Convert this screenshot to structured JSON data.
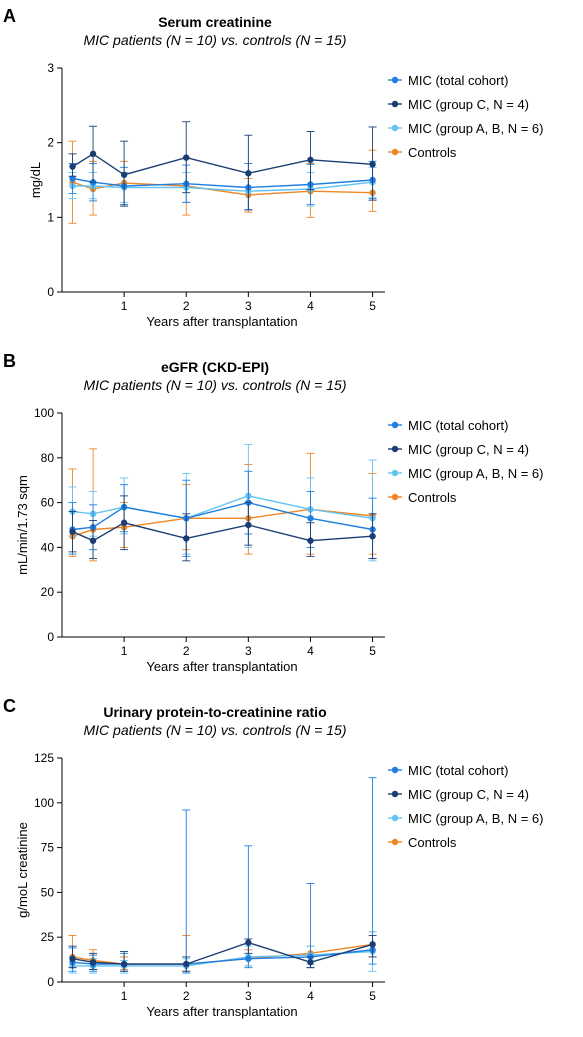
{
  "colors": {
    "total": "#1f7fe0",
    "groupC": "#1a3e73",
    "groupAB": "#63c3f2",
    "controls": "#ef8624"
  },
  "chart_data": [
    {
      "type": "line",
      "panel_letter": "A",
      "title": "Serum creatinine",
      "subtitle": "MIC patients (N = 10) vs. controls (N = 15)",
      "xlabel": "Years after transplantation",
      "ylabel": "mg/dL",
      "xlim": [
        0,
        5.2
      ],
      "ylim": [
        0,
        3
      ],
      "x_ticks": [
        1,
        2,
        3,
        4,
        5
      ],
      "y_ticks": [
        0,
        1,
        2,
        3
      ],
      "legend_position": "right",
      "series": [
        {
          "name": "MIC (total cohort)",
          "color_key": "total",
          "points": [
            {
              "x": 0.17,
              "y": 1.52,
              "lo": 1.32,
              "hi": 1.72
            },
            {
              "x": 0.5,
              "y": 1.47,
              "lo": 1.22,
              "hi": 1.72
            },
            {
              "x": 1,
              "y": 1.42,
              "lo": 1.17,
              "hi": 1.67
            },
            {
              "x": 2,
              "y": 1.45,
              "lo": 1.2,
              "hi": 1.7
            },
            {
              "x": 3,
              "y": 1.4,
              "lo": 1.1,
              "hi": 1.72
            },
            {
              "x": 4,
              "y": 1.44,
              "lo": 1.17,
              "hi": 1.71
            },
            {
              "x": 5,
              "y": 1.5,
              "lo": 1.25,
              "hi": 1.75
            }
          ]
        },
        {
          "name": "MIC (group C, N = 4)",
          "color_key": "groupC",
          "points": [
            {
              "x": 0.17,
              "y": 1.68,
              "lo": 1.55,
              "hi": 1.85
            },
            {
              "x": 0.5,
              "y": 1.85,
              "lo": 1.47,
              "hi": 2.22
            },
            {
              "x": 1,
              "y": 1.57,
              "lo": 1.15,
              "hi": 2.02
            },
            {
              "x": 2,
              "y": 1.8,
              "lo": 1.33,
              "hi": 2.28
            },
            {
              "x": 3,
              "y": 1.59,
              "lo": 1.1,
              "hi": 2.1
            },
            {
              "x": 4,
              "y": 1.77,
              "lo": 1.37,
              "hi": 2.15
            },
            {
              "x": 5,
              "y": 1.71,
              "lo": 1.23,
              "hi": 2.21
            }
          ]
        },
        {
          "name": "MIC (group A, B, N = 6)",
          "color_key": "groupAB",
          "points": [
            {
              "x": 0.17,
              "y": 1.42,
              "lo": 1.25,
              "hi": 1.6
            },
            {
              "x": 0.5,
              "y": 1.42,
              "lo": 1.25,
              "hi": 1.6
            },
            {
              "x": 1,
              "y": 1.4,
              "lo": 1.2,
              "hi": 1.6
            },
            {
              "x": 2,
              "y": 1.4,
              "lo": 1.2,
              "hi": 1.6
            },
            {
              "x": 3,
              "y": 1.35,
              "lo": 1.1,
              "hi": 1.6
            },
            {
              "x": 4,
              "y": 1.38,
              "lo": 1.15,
              "hi": 1.6
            },
            {
              "x": 5,
              "y": 1.47,
              "lo": 1.27,
              "hi": 1.67
            }
          ]
        },
        {
          "name": "Controls",
          "color_key": "controls",
          "points": [
            {
              "x": 0.17,
              "y": 1.47,
              "lo": 0.92,
              "hi": 2.02
            },
            {
              "x": 0.5,
              "y": 1.38,
              "lo": 1.03,
              "hi": 1.75
            },
            {
              "x": 1,
              "y": 1.46,
              "lo": 1.17,
              "hi": 1.75
            },
            {
              "x": 2,
              "y": 1.42,
              "lo": 1.03,
              "hi": 1.8
            },
            {
              "x": 3,
              "y": 1.3,
              "lo": 1.07,
              "hi": 1.52
            },
            {
              "x": 4,
              "y": 1.35,
              "lo": 1.0,
              "hi": 1.72
            },
            {
              "x": 5,
              "y": 1.33,
              "lo": 1.08,
              "hi": 1.9
            }
          ]
        }
      ]
    },
    {
      "type": "line",
      "panel_letter": "B",
      "title": "eGFR (CKD-EPI)",
      "subtitle": "MIC patients (N = 10) vs. controls (N = 15)",
      "xlabel": "Years after transplantation",
      "ylabel": "mL/min/1.73 sqm",
      "xlim": [
        0,
        5.2
      ],
      "ylim": [
        0,
        100
      ],
      "x_ticks": [
        1,
        2,
        3,
        4,
        5
      ],
      "y_ticks": [
        0,
        20,
        40,
        60,
        80,
        100
      ],
      "legend_position": "right",
      "series": [
        {
          "name": "MIC (total cohort)",
          "color_key": "total",
          "points": [
            {
              "x": 0.17,
              "y": 48,
              "lo": 37,
              "hi": 60
            },
            {
              "x": 0.5,
              "y": 49,
              "lo": 39,
              "hi": 59
            },
            {
              "x": 1,
              "y": 58,
              "lo": 47,
              "hi": 68
            },
            {
              "x": 2,
              "y": 53,
              "lo": 36,
              "hi": 70
            },
            {
              "x": 3,
              "y": 60,
              "lo": 46,
              "hi": 74
            },
            {
              "x": 4,
              "y": 53,
              "lo": 40,
              "hi": 65
            },
            {
              "x": 5,
              "y": 48,
              "lo": 35,
              "hi": 62
            }
          ]
        },
        {
          "name": "MIC (group C, N = 4)",
          "color_key": "groupC",
          "points": [
            {
              "x": 0.17,
              "y": 47,
              "lo": 38,
              "hi": 56
            },
            {
              "x": 0.5,
              "y": 43,
              "lo": 35,
              "hi": 52
            },
            {
              "x": 1,
              "y": 51,
              "lo": 39,
              "hi": 63
            },
            {
              "x": 2,
              "y": 44,
              "lo": 34,
              "hi": 55
            },
            {
              "x": 3,
              "y": 50,
              "lo": 41,
              "hi": 60
            },
            {
              "x": 4,
              "y": 43,
              "lo": 36,
              "hi": 51
            },
            {
              "x": 5,
              "y": 45,
              "lo": 35,
              "hi": 55
            }
          ]
        },
        {
          "name": "MIC (group A, B, N = 6)",
          "color_key": "groupAB",
          "points": [
            {
              "x": 0.17,
              "y": 56,
              "lo": 45,
              "hi": 67
            },
            {
              "x": 0.5,
              "y": 55,
              "lo": 45,
              "hi": 65
            },
            {
              "x": 1,
              "y": 58,
              "lo": 46,
              "hi": 71
            },
            {
              "x": 2,
              "y": 53,
              "lo": 37,
              "hi": 73
            },
            {
              "x": 3,
              "y": 63,
              "lo": 40,
              "hi": 86
            },
            {
              "x": 4,
              "y": 57,
              "lo": 43,
              "hi": 71
            },
            {
              "x": 5,
              "y": 53,
              "lo": 34,
              "hi": 79
            }
          ]
        },
        {
          "name": "Controls",
          "color_key": "controls",
          "points": [
            {
              "x": 0.17,
              "y": 45,
              "lo": 36,
              "hi": 75
            },
            {
              "x": 0.5,
              "y": 48,
              "lo": 34,
              "hi": 84
            },
            {
              "x": 1,
              "y": 49,
              "lo": 40,
              "hi": 60
            },
            {
              "x": 2,
              "y": 53,
              "lo": 39,
              "hi": 68
            },
            {
              "x": 3,
              "y": 53,
              "lo": 37,
              "hi": 77
            },
            {
              "x": 4,
              "y": 57,
              "lo": 37,
              "hi": 82
            },
            {
              "x": 5,
              "y": 54,
              "lo": 37,
              "hi": 73
            }
          ]
        }
      ]
    },
    {
      "type": "line",
      "panel_letter": "C",
      "title": "Urinary protein-to-creatinine ratio",
      "subtitle": "MIC patients (N = 10) vs. controls (N = 15)",
      "xlabel": "Years after transplantation",
      "ylabel": "g/moL creatinine",
      "xlim": [
        0,
        5.2
      ],
      "ylim": [
        0,
        125
      ],
      "x_ticks": [
        1,
        2,
        3,
        4,
        5
      ],
      "y_ticks": [
        0,
        25,
        50,
        75,
        100,
        125
      ],
      "legend_position": "right",
      "series": [
        {
          "name": "MIC (total cohort)",
          "color_key": "total",
          "points": [
            {
              "x": 0.17,
              "y": 11,
              "lo": 6,
              "hi": 19
            },
            {
              "x": 0.5,
              "y": 10,
              "lo": 6,
              "hi": 15
            },
            {
              "x": 1,
              "y": 10,
              "lo": 6,
              "hi": 16
            },
            {
              "x": 2,
              "y": 10,
              "lo": 5,
              "hi": 96
            },
            {
              "x": 3,
              "y": 13,
              "lo": 8,
              "hi": 76
            },
            {
              "x": 4,
              "y": 14,
              "lo": 8,
              "hi": 55
            },
            {
              "x": 5,
              "y": 18,
              "lo": 10,
              "hi": 114
            }
          ]
        },
        {
          "name": "MIC (group C, N = 4)",
          "color_key": "groupC",
          "points": [
            {
              "x": 0.17,
              "y": 13,
              "lo": 8,
              "hi": 20
            },
            {
              "x": 0.5,
              "y": 11,
              "lo": 7,
              "hi": 16
            },
            {
              "x": 1,
              "y": 10,
              "lo": 6,
              "hi": 17
            },
            {
              "x": 2,
              "y": 10,
              "lo": 6,
              "hi": 14
            },
            {
              "x": 3,
              "y": 22,
              "lo": 16,
              "hi": 24
            },
            {
              "x": 4,
              "y": 11,
              "lo": 8,
              "hi": 14
            },
            {
              "x": 5,
              "y": 21,
              "lo": 14,
              "hi": 26
            }
          ]
        },
        {
          "name": "MIC (group A, B, N = 6)",
          "color_key": "groupAB",
          "points": [
            {
              "x": 0.17,
              "y": 9,
              "lo": 5,
              "hi": 14
            },
            {
              "x": 0.5,
              "y": 9,
              "lo": 5,
              "hi": 13
            },
            {
              "x": 1,
              "y": 9,
              "lo": 5,
              "hi": 12
            },
            {
              "x": 2,
              "y": 9,
              "lo": 5,
              "hi": 13
            },
            {
              "x": 3,
              "y": 14,
              "lo": 9,
              "hi": 20
            },
            {
              "x": 4,
              "y": 15,
              "lo": 10,
              "hi": 20
            },
            {
              "x": 5,
              "y": 17,
              "lo": 6,
              "hi": 28
            }
          ]
        },
        {
          "name": "Controls",
          "color_key": "controls",
          "points": [
            {
              "x": 0.17,
              "y": 14,
              "lo": 8,
              "hi": 26
            },
            {
              "x": 0.5,
              "y": 12,
              "lo": 7,
              "hi": 18
            },
            {
              "x": 1,
              "y": 10,
              "lo": 7,
              "hi": 14
            },
            {
              "x": 2,
              "y": 10,
              "lo": 6,
              "hi": 26
            },
            {
              "x": 3,
              "y": 13,
              "lo": 9,
              "hi": 18
            },
            {
              "x": 4,
              "y": 16,
              "lo": 10,
              "hi": 20
            },
            {
              "x": 5,
              "y": 21,
              "lo": 14,
              "hi": 28
            }
          ]
        }
      ]
    }
  ]
}
